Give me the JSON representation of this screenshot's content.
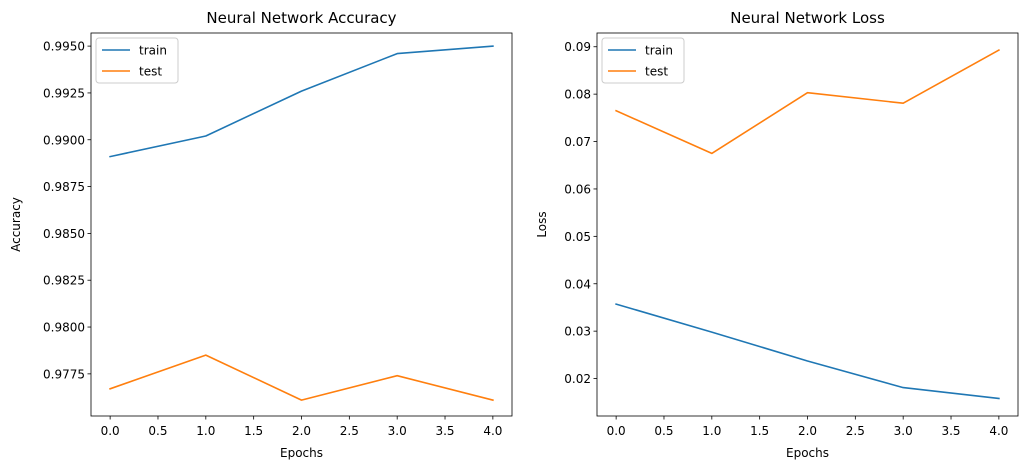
{
  "chart_data": [
    {
      "type": "line",
      "title": "Neural Network Accuracy",
      "xlabel": "Epochs",
      "ylabel": "Accuracy",
      "x": [
        0.0,
        1.0,
        2.0,
        3.0,
        4.0
      ],
      "xlim": [
        -0.2,
        4.2
      ],
      "ylim": [
        0.97525,
        0.9957
      ],
      "xticks": [
        0.0,
        0.5,
        1.0,
        1.5,
        2.0,
        2.5,
        3.0,
        3.5,
        4.0
      ],
      "xtick_labels": [
        "0.0",
        "0.5",
        "1.0",
        "1.5",
        "2.0",
        "2.5",
        "3.0",
        "3.5",
        "4.0"
      ],
      "yticks": [
        0.9775,
        0.98,
        0.9825,
        0.985,
        0.9875,
        0.99,
        0.9925,
        0.995
      ],
      "ytick_labels": [
        "0.9775",
        "0.9800",
        "0.9825",
        "0.9850",
        "0.9875",
        "0.9900",
        "0.9925",
        "0.9950"
      ],
      "series": [
        {
          "name": "train",
          "color": "#1f77b4",
          "values": [
            0.9891,
            0.9902,
            0.9926,
            0.9946,
            0.995
          ]
        },
        {
          "name": "test",
          "color": "#ff7f0e",
          "values": [
            0.9767,
            0.9785,
            0.9761,
            0.9774,
            0.9761
          ]
        }
      ],
      "legend": "top-left",
      "grid": false
    },
    {
      "type": "line",
      "title": "Neural Network Loss",
      "xlabel": "Epochs",
      "ylabel": "Loss",
      "x": [
        0.0,
        1.0,
        2.0,
        3.0,
        4.0
      ],
      "xlim": [
        -0.2,
        4.2
      ],
      "ylim": [
        0.0121,
        0.0929
      ],
      "xticks": [
        0.0,
        0.5,
        1.0,
        1.5,
        2.0,
        2.5,
        3.0,
        3.5,
        4.0
      ],
      "xtick_labels": [
        "0.0",
        "0.5",
        "1.0",
        "1.5",
        "2.0",
        "2.5",
        "3.0",
        "3.5",
        "4.0"
      ],
      "yticks": [
        0.02,
        0.03,
        0.04,
        0.05,
        0.06,
        0.07,
        0.08,
        0.09
      ],
      "ytick_labels": [
        "0.02",
        "0.03",
        "0.04",
        "0.05",
        "0.06",
        "0.07",
        "0.08",
        "0.09"
      ],
      "series": [
        {
          "name": "train",
          "color": "#1f77b4",
          "values": [
            0.0357,
            0.0298,
            0.0237,
            0.0181,
            0.0158
          ]
        },
        {
          "name": "test",
          "color": "#ff7f0e",
          "values": [
            0.0765,
            0.0675,
            0.0803,
            0.0781,
            0.0893
          ]
        }
      ],
      "legend": "top-left",
      "grid": false
    }
  ]
}
